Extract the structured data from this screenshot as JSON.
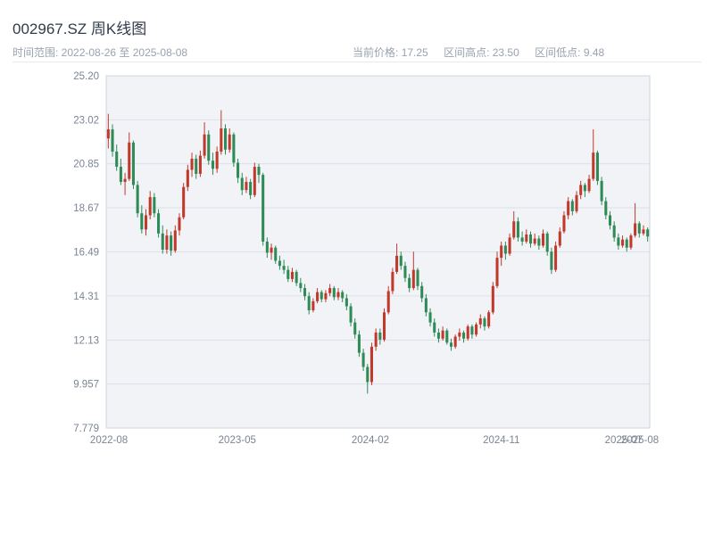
{
  "header": {
    "title": "002967.SZ 周K线图",
    "subtitle": "时间范围: 2022-08-26 至 2025-08-08",
    "stats": [
      {
        "label": "当前价格:",
        "value": "17.25"
      },
      {
        "label": "区间高点:",
        "value": "23.50"
      },
      {
        "label": "区间低点:",
        "value": "9.48"
      }
    ]
  },
  "chart_data": {
    "type": "candlestick",
    "symbol": "002967.SZ",
    "period": "weekly",
    "title": "002967.SZ 周K线图",
    "date_range": {
      "start": "2022-08-26",
      "end": "2025-08-08"
    },
    "current_price": 17.25,
    "range_high": 23.5,
    "range_low": 9.48,
    "grid": true,
    "legend": "none",
    "y_axis": {
      "min": 7.779,
      "max": 25.2,
      "ticks": [
        {
          "label": "25.20",
          "value": 25.2
        },
        {
          "label": "23.02",
          "value": 23.02
        },
        {
          "label": "20.85",
          "value": 20.85
        },
        {
          "label": "18.67",
          "value": 18.67
        },
        {
          "label": "16.49",
          "value": 16.49
        },
        {
          "label": "14.31",
          "value": 14.31
        },
        {
          "label": "12.13",
          "value": 12.13
        },
        {
          "label": "9.957",
          "value": 9.957
        },
        {
          "label": "7.779",
          "value": 7.779
        }
      ]
    },
    "x_axis": {
      "ticks": [
        {
          "label": "2022-08",
          "f": 0.005
        },
        {
          "label": "2023-05",
          "f": 0.241
        },
        {
          "label": "2024-02",
          "f": 0.486
        },
        {
          "label": "2024-11",
          "f": 0.727
        },
        {
          "label": "2025-07",
          "f": 0.952
        },
        {
          "label": "2025-08",
          "f": 0.982
        }
      ]
    },
    "colors": {
      "up": "#c0392b",
      "down": "#2e8b57",
      "grid": "#dce0e8",
      "plot_bg": "#f1f3f7",
      "border": "#cfd4de",
      "tick_text": "#7a8494"
    },
    "columns": [
      "open",
      "high",
      "low",
      "close"
    ],
    "candles": [
      [
        22.1,
        23.32,
        21.6,
        22.55
      ],
      [
        22.55,
        22.8,
        21.2,
        21.45
      ],
      [
        21.45,
        21.8,
        20.5,
        20.7
      ],
      [
        20.7,
        21.1,
        19.8,
        19.95
      ],
      [
        19.95,
        20.4,
        19.3,
        20.1
      ],
      [
        20.1,
        22.4,
        20.0,
        21.9
      ],
      [
        21.9,
        22.0,
        19.6,
        19.8
      ],
      [
        19.8,
        20.0,
        18.2,
        18.4
      ],
      [
        18.4,
        18.8,
        17.4,
        17.6
      ],
      [
        17.6,
        18.6,
        17.3,
        18.3
      ],
      [
        18.3,
        19.5,
        18.1,
        19.2
      ],
      [
        19.2,
        19.4,
        18.2,
        18.4
      ],
      [
        18.4,
        18.6,
        17.2,
        17.4
      ],
      [
        17.4,
        17.8,
        16.4,
        16.6
      ],
      [
        16.6,
        17.6,
        16.4,
        17.3
      ],
      [
        17.3,
        17.5,
        16.3,
        16.55
      ],
      [
        16.55,
        17.8,
        16.45,
        17.55
      ],
      [
        17.55,
        18.4,
        17.3,
        18.2
      ],
      [
        18.2,
        19.9,
        18.1,
        19.7
      ],
      [
        19.7,
        20.8,
        19.5,
        20.55
      ],
      [
        20.55,
        21.4,
        20.2,
        21.1
      ],
      [
        21.1,
        21.3,
        20.1,
        20.35
      ],
      [
        20.35,
        21.5,
        20.2,
        21.25
      ],
      [
        21.25,
        22.9,
        21.1,
        22.3
      ],
      [
        22.3,
        22.5,
        20.8,
        21.0
      ],
      [
        21.0,
        21.4,
        20.3,
        20.6
      ],
      [
        20.6,
        21.7,
        20.4,
        21.45
      ],
      [
        21.45,
        23.5,
        21.3,
        22.6
      ],
      [
        22.6,
        22.8,
        21.3,
        21.55
      ],
      [
        21.55,
        22.6,
        21.4,
        22.3
      ],
      [
        22.3,
        22.4,
        20.7,
        20.9
      ],
      [
        20.9,
        21.1,
        19.9,
        20.15
      ],
      [
        20.15,
        20.4,
        19.3,
        19.55
      ],
      [
        19.55,
        20.2,
        19.4,
        19.95
      ],
      [
        19.95,
        20.1,
        19.1,
        19.3
      ],
      [
        19.3,
        20.9,
        19.2,
        20.7
      ],
      [
        20.7,
        20.85,
        19.9,
        20.3
      ],
      [
        20.3,
        20.4,
        16.8,
        17.0
      ],
      [
        17.0,
        17.2,
        16.2,
        16.45
      ],
      [
        16.45,
        16.9,
        16.1,
        16.7
      ],
      [
        16.7,
        16.8,
        15.9,
        16.05
      ],
      [
        16.05,
        16.3,
        15.6,
        15.8
      ],
      [
        15.8,
        16.1,
        15.4,
        15.6
      ],
      [
        15.6,
        15.8,
        15.0,
        15.15
      ],
      [
        15.15,
        15.7,
        15.0,
        15.5
      ],
      [
        15.5,
        15.6,
        14.8,
        14.95
      ],
      [
        14.95,
        15.2,
        14.5,
        14.7
      ],
      [
        14.7,
        14.9,
        14.1,
        14.3
      ],
      [
        14.3,
        14.5,
        13.4,
        13.6
      ],
      [
        13.6,
        14.2,
        13.5,
        14.05
      ],
      [
        14.05,
        14.7,
        13.95,
        14.5
      ],
      [
        14.5,
        14.6,
        14.0,
        14.15
      ],
      [
        14.15,
        14.6,
        14.0,
        14.45
      ],
      [
        14.45,
        14.9,
        14.3,
        14.7
      ],
      [
        14.7,
        14.8,
        14.1,
        14.25
      ],
      [
        14.25,
        14.7,
        14.1,
        14.5
      ],
      [
        14.5,
        14.6,
        14.0,
        14.2
      ],
      [
        14.2,
        14.4,
        13.6,
        13.8
      ],
      [
        13.8,
        13.95,
        12.8,
        13.0
      ],
      [
        13.0,
        13.2,
        12.2,
        12.4
      ],
      [
        12.4,
        12.6,
        11.3,
        11.5
      ],
      [
        11.5,
        11.7,
        10.6,
        10.8
      ],
      [
        10.8,
        10.95,
        9.48,
        10.05
      ],
      [
        10.05,
        12.0,
        9.9,
        11.8
      ],
      [
        11.8,
        12.7,
        11.6,
        12.5
      ],
      [
        12.5,
        12.7,
        11.9,
        12.15
      ],
      [
        12.15,
        13.7,
        12.05,
        13.5
      ],
      [
        13.5,
        14.8,
        13.4,
        14.55
      ],
      [
        14.55,
        15.7,
        14.4,
        15.5
      ],
      [
        15.5,
        16.9,
        15.4,
        16.3
      ],
      [
        16.3,
        16.5,
        15.6,
        15.8
      ],
      [
        15.8,
        16.0,
        15.0,
        15.2
      ],
      [
        15.2,
        15.4,
        14.5,
        14.7
      ],
      [
        14.7,
        16.5,
        14.6,
        15.6
      ],
      [
        15.6,
        15.7,
        14.6,
        14.8
      ],
      [
        14.8,
        15.0,
        14.0,
        14.2
      ],
      [
        14.2,
        14.4,
        13.3,
        13.5
      ],
      [
        13.5,
        13.7,
        12.8,
        13.0
      ],
      [
        13.0,
        13.2,
        12.3,
        12.5
      ],
      [
        12.5,
        12.7,
        12.0,
        12.2
      ],
      [
        12.2,
        12.8,
        12.1,
        12.6
      ],
      [
        12.6,
        12.7,
        11.9,
        12.0
      ],
      [
        12.0,
        12.2,
        11.6,
        11.8
      ],
      [
        11.8,
        12.4,
        11.7,
        12.3
      ],
      [
        12.3,
        12.7,
        12.1,
        12.5
      ],
      [
        12.5,
        12.6,
        12.0,
        12.2
      ],
      [
        12.2,
        12.9,
        12.1,
        12.8
      ],
      [
        12.8,
        12.9,
        12.2,
        12.4
      ],
      [
        12.4,
        13.0,
        12.3,
        12.9
      ],
      [
        12.9,
        13.4,
        12.7,
        13.2
      ],
      [
        13.2,
        13.3,
        12.6,
        12.8
      ],
      [
        12.8,
        13.6,
        12.7,
        13.5
      ],
      [
        13.5,
        15.0,
        13.4,
        14.8
      ],
      [
        14.8,
        16.5,
        14.7,
        16.2
      ],
      [
        16.2,
        17.0,
        15.8,
        16.8
      ],
      [
        16.8,
        17.0,
        16.1,
        16.4
      ],
      [
        16.4,
        17.4,
        16.3,
        17.2
      ],
      [
        17.2,
        18.5,
        17.1,
        18.0
      ],
      [
        18.0,
        18.2,
        17.0,
        17.2
      ],
      [
        17.2,
        17.5,
        16.8,
        17.0
      ],
      [
        17.0,
        17.6,
        16.9,
        17.35
      ],
      [
        17.35,
        17.5,
        16.7,
        16.9
      ],
      [
        16.9,
        17.4,
        16.8,
        17.15
      ],
      [
        17.15,
        17.3,
        16.6,
        16.8
      ],
      [
        16.8,
        17.6,
        16.7,
        17.4
      ],
      [
        17.4,
        17.5,
        16.3,
        16.5
      ],
      [
        16.5,
        16.7,
        15.4,
        15.6
      ],
      [
        15.6,
        17.0,
        15.5,
        16.8
      ],
      [
        16.8,
        17.7,
        16.7,
        17.5
      ],
      [
        17.5,
        18.5,
        17.4,
        18.3
      ],
      [
        18.3,
        19.2,
        18.1,
        19.0
      ],
      [
        19.0,
        19.1,
        18.3,
        18.5
      ],
      [
        18.5,
        19.5,
        18.4,
        19.3
      ],
      [
        19.3,
        20.0,
        19.1,
        19.8
      ],
      [
        19.8,
        19.9,
        19.2,
        19.5
      ],
      [
        19.5,
        20.3,
        19.4,
        20.1
      ],
      [
        20.1,
        22.55,
        20.0,
        21.4
      ],
      [
        21.4,
        21.5,
        19.8,
        20.0
      ],
      [
        20.0,
        20.2,
        18.8,
        19.0
      ],
      [
        19.0,
        19.2,
        18.1,
        18.3
      ],
      [
        18.3,
        18.5,
        17.6,
        17.8
      ],
      [
        17.8,
        18.0,
        17.0,
        17.2
      ],
      [
        17.2,
        17.4,
        16.6,
        16.8
      ],
      [
        16.8,
        17.3,
        16.7,
        17.1
      ],
      [
        17.1,
        17.2,
        16.5,
        16.7
      ],
      [
        16.7,
        17.4,
        16.6,
        17.3
      ],
      [
        17.3,
        18.9,
        17.2,
        17.9
      ],
      [
        17.9,
        18.0,
        17.2,
        17.4
      ],
      [
        17.4,
        17.8,
        17.3,
        17.6
      ],
      [
        17.6,
        17.7,
        17.0,
        17.25
      ]
    ]
  }
}
